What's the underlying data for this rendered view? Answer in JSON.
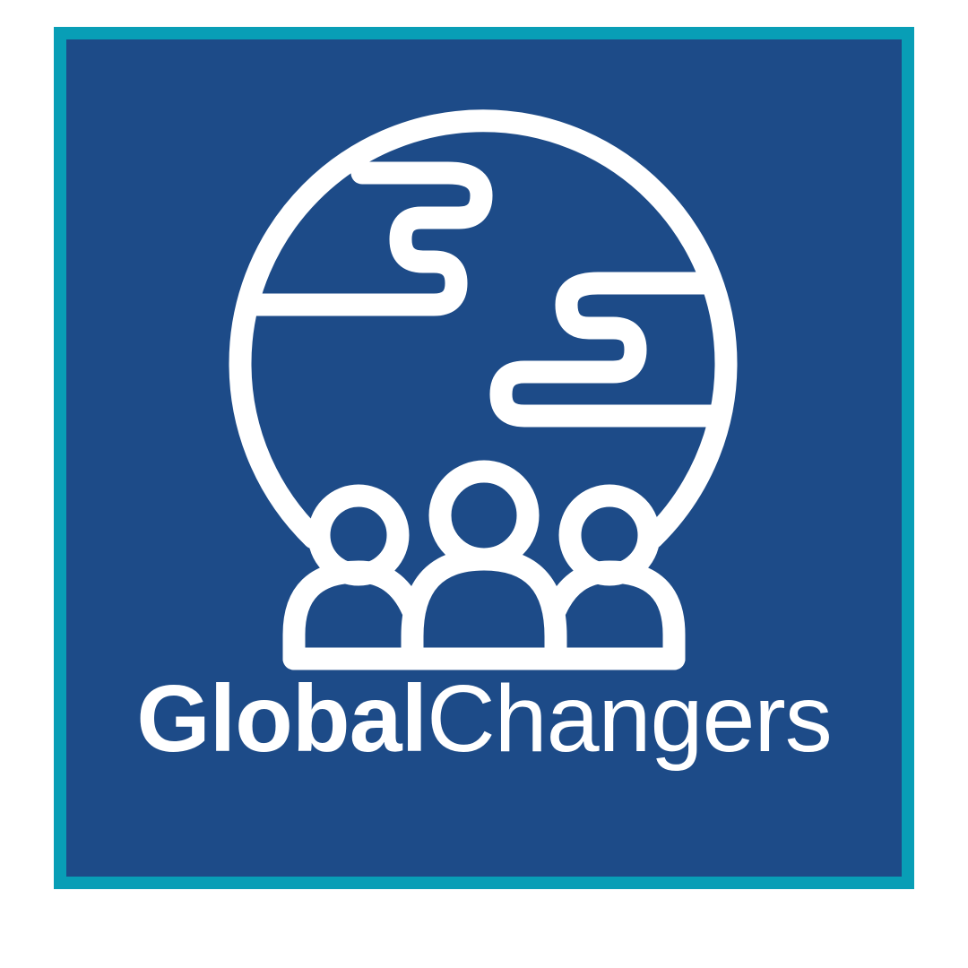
{
  "brand": {
    "name_bold": "Global",
    "name_light": "Changers",
    "emblem": "globe-with-people-icon"
  },
  "colors": {
    "background": "#ffffff",
    "frame_border": "#089eb6",
    "panel": "#1d4b88",
    "foreground": "#ffffff"
  }
}
